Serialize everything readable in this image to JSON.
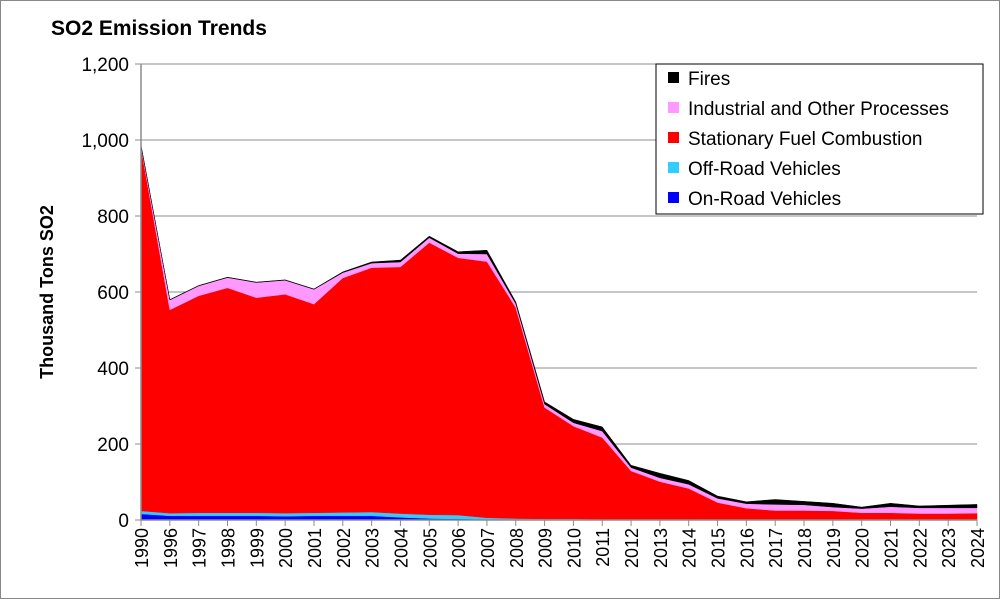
{
  "chart_data": {
    "type": "area",
    "stacked": true,
    "title": "SO2 Emission Trends",
    "xlabel": "",
    "ylabel": "Thousand Tons SO2",
    "ylim": [
      0,
      1200
    ],
    "yticks": [
      0,
      200,
      400,
      600,
      800,
      1000,
      1200
    ],
    "ytick_labels": [
      "0",
      "200",
      "400",
      "600",
      "800",
      "1,000",
      "1,200"
    ],
    "grid": "horizontal",
    "legend_placement": "top-right",
    "categories": [
      "1990",
      "1996",
      "1997",
      "1998",
      "1999",
      "2000",
      "2001",
      "2002",
      "2003",
      "2004",
      "2005",
      "2006",
      "2007",
      "2008",
      "2009",
      "2010",
      "2011",
      "2012",
      "2013",
      "2014",
      "2015",
      "2016",
      "2017",
      "2018",
      "2019",
      "2020",
      "2021",
      "2022",
      "2023",
      "2024"
    ],
    "series": [
      {
        "name": "On-Road Vehicles",
        "color": "#0000ff",
        "values": [
          16,
          11,
          11,
          11,
          11,
          10,
          11,
          11,
          11,
          7,
          4,
          3,
          2,
          1,
          1,
          1,
          1,
          1,
          1,
          1,
          0.5,
          0.5,
          0.5,
          0.5,
          0.5,
          0.5,
          0.5,
          0.5,
          0.5,
          0.5
        ]
      },
      {
        "name": "Off-Road Vehicles",
        "color": "#33ccff",
        "values": [
          8,
          7,
          8,
          8,
          8,
          8,
          8,
          9,
          10,
          10,
          10,
          10,
          4,
          3,
          2,
          2,
          1,
          1,
          1,
          1,
          0.5,
          0.5,
          0.5,
          0.5,
          0.5,
          0.5,
          0.5,
          0.5,
          0.5,
          0.5
        ]
      },
      {
        "name": "Stationary Fuel Combustion",
        "color": "#ff0000",
        "values": [
          956,
          535,
          571,
          592,
          566,
          576,
          549,
          617,
          643,
          649,
          716,
          677,
          674,
          555,
          293,
          244,
          215,
          127,
          99,
          81,
          45,
          30,
          24,
          24,
          23,
          18,
          18,
          16,
          16,
          17
        ]
      },
      {
        "name": "Industrial and Other Processes",
        "color": "#ff99ff",
        "values": [
          5,
          26,
          26,
          27,
          40,
          37,
          39,
          14,
          12,
          13,
          13,
          11,
          20,
          10,
          9,
          9,
          17,
          9,
          10,
          11,
          11,
          12,
          16,
          15,
          10,
          11,
          16,
          15,
          15,
          14
        ]
      },
      {
        "name": "Fires",
        "color": "#000000",
        "values": [
          2,
          1,
          1,
          1,
          1,
          1,
          1,
          2,
          3,
          5,
          4,
          5,
          10,
          5,
          6,
          9,
          11,
          6,
          12,
          10,
          6,
          5,
          13,
          9,
          10,
          4,
          9,
          5,
          7,
          9
        ]
      }
    ]
  }
}
